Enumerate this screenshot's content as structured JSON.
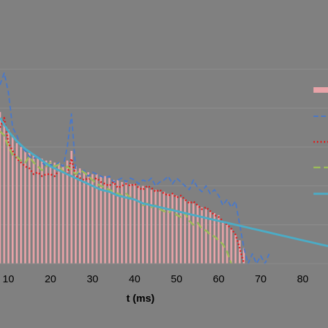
{
  "chart_data": {
    "type": "bar",
    "xlabel": "t (ms)",
    "ylabel": "",
    "title": "",
    "xlim": [
      8,
      86
    ],
    "ylim": [
      0,
      1.0
    ],
    "x_ticks": [
      10,
      20,
      30,
      40,
      50,
      60,
      70,
      80
    ],
    "grid": true,
    "legend_position": "right",
    "colors": {
      "background": "#808080",
      "gridline": "#8e8e8e",
      "bars": "#e8a3a8",
      "blue_dashed": "#4a78c7",
      "red_dotted": "#e01b1b",
      "green_dashed": "#9bbb59",
      "cyan_line": "#4bacc6"
    },
    "bars": {
      "x": [
        8,
        9,
        10,
        11,
        12,
        13,
        14,
        15,
        16,
        17,
        18,
        19,
        20,
        21,
        22,
        23,
        24,
        25,
        26,
        27,
        28,
        29,
        30,
        31,
        32,
        33,
        34,
        35,
        36,
        37,
        38,
        39,
        40,
        41,
        42,
        43,
        44,
        45,
        46,
        47,
        48,
        49,
        50,
        51,
        52,
        53,
        54,
        55,
        56,
        57,
        58,
        59,
        60,
        61,
        62,
        63,
        64,
        65,
        66
      ],
      "values": [
        0.78,
        0.72,
        0.69,
        0.66,
        0.62,
        0.6,
        0.58,
        0.57,
        0.56,
        0.55,
        0.54,
        0.53,
        0.53,
        0.52,
        0.52,
        0.51,
        0.53,
        0.58,
        0.5,
        0.49,
        0.48,
        0.47,
        0.46,
        0.46,
        0.45,
        0.45,
        0.44,
        0.43,
        0.43,
        0.42,
        0.42,
        0.41,
        0.41,
        0.4,
        0.4,
        0.39,
        0.38,
        0.38,
        0.37,
        0.37,
        0.36,
        0.36,
        0.35,
        0.34,
        0.33,
        0.32,
        0.31,
        0.3,
        0.29,
        0.28,
        0.27,
        0.26,
        0.25,
        0.22,
        0.2,
        0.18,
        0.15,
        0.12,
        0.08
      ]
    },
    "series": [
      {
        "style": "blue-dashed",
        "x": [
          8,
          9,
          10,
          11,
          12,
          13,
          14,
          15,
          16,
          17,
          18,
          19,
          20,
          21,
          22,
          23,
          24,
          25,
          26,
          27,
          28,
          29,
          30,
          31,
          32,
          33,
          34,
          35,
          36,
          37,
          38,
          39,
          40,
          41,
          42,
          43,
          44,
          45,
          46,
          47,
          48,
          49,
          50,
          51,
          52,
          53,
          54,
          55,
          56,
          57,
          58,
          59,
          60,
          61,
          62,
          63,
          64,
          65,
          66,
          67,
          68,
          69,
          70,
          71,
          72
        ],
        "values": [
          0.92,
          0.98,
          0.88,
          0.7,
          0.66,
          0.6,
          0.58,
          0.55,
          0.54,
          0.56,
          0.52,
          0.5,
          0.51,
          0.5,
          0.52,
          0.5,
          0.6,
          0.77,
          0.48,
          0.46,
          0.48,
          0.45,
          0.47,
          0.46,
          0.45,
          0.44,
          0.45,
          0.42,
          0.43,
          0.44,
          0.42,
          0.44,
          0.43,
          0.41,
          0.43,
          0.42,
          0.44,
          0.4,
          0.42,
          0.43,
          0.45,
          0.41,
          0.44,
          0.42,
          0.4,
          0.38,
          0.43,
          0.39,
          0.37,
          0.4,
          0.36,
          0.38,
          0.35,
          0.3,
          0.33,
          0.29,
          0.32,
          0.2,
          0.08,
          0.0,
          0.05,
          0.0,
          0.04,
          0.0,
          0.05
        ]
      },
      {
        "style": "red-dotted",
        "x": [
          8,
          9,
          10,
          11,
          12,
          13,
          14,
          15,
          16,
          17,
          18,
          19,
          20,
          21,
          22,
          23,
          24,
          25,
          26,
          27,
          28,
          29,
          30,
          31,
          32,
          33,
          34,
          35,
          36,
          37,
          38,
          39,
          40,
          41,
          42,
          43,
          44,
          45,
          46,
          47,
          48,
          49,
          50,
          51,
          52,
          53,
          54,
          55,
          56,
          57,
          58,
          59,
          60,
          61,
          62,
          63,
          64,
          65,
          66
        ],
        "values": [
          0.7,
          0.75,
          0.62,
          0.58,
          0.54,
          0.52,
          0.5,
          0.49,
          0.46,
          0.47,
          0.45,
          0.46,
          0.46,
          0.45,
          0.48,
          0.47,
          0.46,
          0.54,
          0.45,
          0.44,
          0.43,
          0.44,
          0.43,
          0.44,
          0.42,
          0.41,
          0.4,
          0.42,
          0.39,
          0.4,
          0.41,
          0.4,
          0.41,
          0.39,
          0.38,
          0.4,
          0.39,
          0.37,
          0.38,
          0.36,
          0.35,
          0.36,
          0.34,
          0.35,
          0.33,
          0.31,
          0.32,
          0.3,
          0.28,
          0.29,
          0.27,
          0.25,
          0.24,
          0.22,
          0.2,
          0.18,
          0.15,
          0.08,
          0.0
        ]
      },
      {
        "style": "green-dashed",
        "x": [
          8,
          9,
          10,
          11,
          12,
          13,
          14,
          15,
          16,
          17,
          18,
          19,
          20,
          21,
          22,
          23,
          24,
          25,
          26,
          27,
          28,
          29,
          30,
          31,
          32,
          33,
          34,
          35,
          36,
          37,
          38,
          39,
          40,
          41,
          42,
          43,
          44,
          45,
          46,
          47,
          48,
          49,
          50,
          51,
          52,
          53,
          54,
          55,
          56,
          57,
          58,
          59,
          60,
          61,
          62,
          63
        ],
        "values": [
          0.68,
          0.66,
          0.6,
          0.56,
          0.55,
          0.53,
          0.52,
          0.55,
          0.52,
          0.5,
          0.48,
          0.5,
          0.52,
          0.5,
          0.51,
          0.47,
          0.5,
          0.48,
          0.46,
          0.48,
          0.47,
          0.45,
          0.43,
          0.41,
          0.4,
          0.39,
          0.38,
          0.37,
          0.36,
          0.35,
          0.36,
          0.34,
          0.33,
          0.32,
          0.3,
          0.31,
          0.29,
          0.3,
          0.28,
          0.27,
          0.26,
          0.28,
          0.25,
          0.24,
          0.26,
          0.22,
          0.2,
          0.21,
          0.18,
          0.17,
          0.15,
          0.14,
          0.12,
          0.1,
          0.06,
          0.0
        ]
      },
      {
        "style": "cyan-solid",
        "x": [
          8,
          10,
          12,
          14,
          16,
          18,
          20,
          22,
          24,
          26,
          28,
          30,
          32,
          34,
          36,
          38,
          40,
          42,
          44,
          46,
          48,
          50,
          52,
          54,
          56,
          58,
          60,
          62,
          64,
          66,
          68,
          70,
          72,
          74,
          76,
          78,
          80,
          82,
          84,
          86
        ],
        "values": [
          0.75,
          0.68,
          0.63,
          0.59,
          0.56,
          0.53,
          0.5,
          0.48,
          0.46,
          0.44,
          0.42,
          0.4,
          0.38,
          0.37,
          0.35,
          0.34,
          0.33,
          0.31,
          0.3,
          0.29,
          0.28,
          0.27,
          0.26,
          0.25,
          0.24,
          0.23,
          0.22,
          0.21,
          0.2,
          0.19,
          0.18,
          0.17,
          0.16,
          0.15,
          0.14,
          0.13,
          0.12,
          0.11,
          0.1,
          0.09
        ]
      }
    ]
  }
}
